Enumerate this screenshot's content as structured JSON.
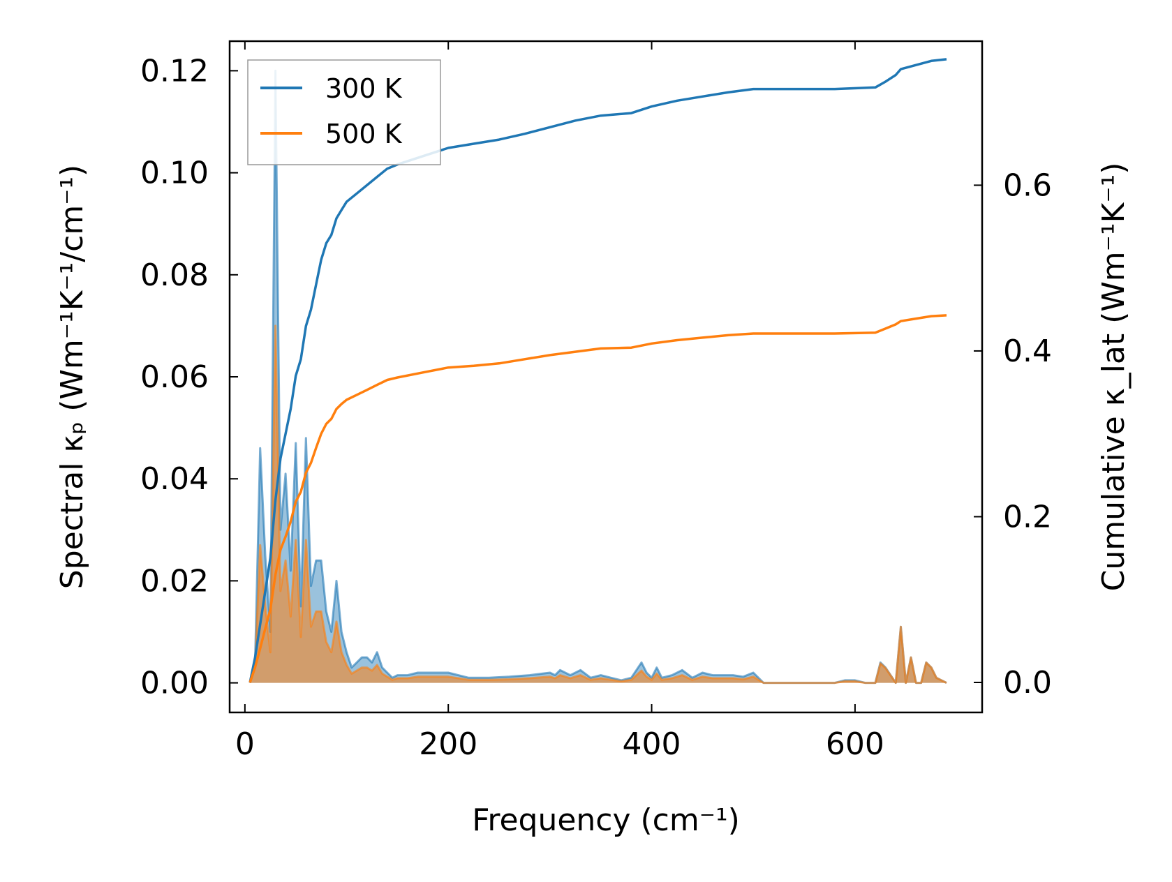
{
  "chart_data": {
    "type": "line",
    "xlabel": "Frequency (cm⁻¹)",
    "ylabel_left": "Spectral κₚ (Wm⁻¹K⁻¹/cm⁻¹)",
    "ylabel_right": "Cumulative κ_lat (Wm⁻¹K⁻¹)",
    "xlim": [
      -15,
      725
    ],
    "ylim_left": [
      -0.0058,
      0.1258
    ],
    "ylim_right": [
      -0.0362,
      0.7738
    ],
    "x_ticks": [
      0,
      200,
      400,
      600
    ],
    "x_tick_labels": [
      "0",
      "200",
      "400",
      "600"
    ],
    "y_left_ticks": [
      0.0,
      0.02,
      0.04,
      0.06,
      0.08,
      0.1,
      0.12
    ],
    "y_left_tick_labels": [
      "0.00",
      "0.02",
      "0.04",
      "0.06",
      "0.08",
      "0.10",
      "0.12"
    ],
    "y_right_ticks": [
      0.0,
      0.2,
      0.4,
      0.6
    ],
    "y_right_tick_labels": [
      "0.0",
      "0.2",
      "0.4",
      "0.6"
    ],
    "legend": {
      "position": "top-left",
      "entries": [
        "300 K",
        "500 K"
      ]
    },
    "colors": {
      "300 K": "#1f77b4",
      "500 K": "#ff7f0e"
    },
    "series": [
      {
        "name": "300 K",
        "kind": "spectral",
        "axis": "left",
        "x": [
          5,
          10,
          15,
          20,
          25,
          30,
          35,
          40,
          45,
          50,
          55,
          60,
          65,
          70,
          75,
          80,
          85,
          90,
          95,
          100,
          105,
          110,
          115,
          120,
          125,
          130,
          135,
          140,
          145,
          150,
          160,
          170,
          180,
          200,
          220,
          240,
          260,
          280,
          300,
          305,
          310,
          320,
          330,
          340,
          350,
          360,
          370,
          380,
          390,
          395,
          400,
          405,
          410,
          420,
          430,
          440,
          450,
          460,
          470,
          480,
          490,
          500,
          510,
          520,
          560,
          580,
          590,
          600,
          610,
          620,
          625,
          630,
          640,
          645,
          650,
          655,
          660,
          665,
          670,
          675,
          680,
          690
        ],
        "y": [
          0.0,
          0.004,
          0.046,
          0.025,
          0.01,
          0.12,
          0.03,
          0.041,
          0.022,
          0.047,
          0.015,
          0.048,
          0.019,
          0.024,
          0.024,
          0.014,
          0.01,
          0.02,
          0.01,
          0.006,
          0.003,
          0.004,
          0.005,
          0.005,
          0.004,
          0.006,
          0.003,
          0.002,
          0.001,
          0.0015,
          0.0015,
          0.002,
          0.002,
          0.002,
          0.001,
          0.001,
          0.0012,
          0.0015,
          0.002,
          0.0015,
          0.0025,
          0.0015,
          0.0025,
          0.001,
          0.0015,
          0.001,
          0.0005,
          0.001,
          0.004,
          0.002,
          0.001,
          0.003,
          0.001,
          0.0015,
          0.0025,
          0.001,
          0.002,
          0.0015,
          0.0015,
          0.0015,
          0.0012,
          0.002,
          0.0,
          0.0,
          0.0,
          0.0,
          0.0005,
          0.0005,
          0.0,
          0.0,
          0.004,
          0.003,
          0.0,
          0.011,
          0.0,
          0.005,
          0.0,
          0.0,
          0.004,
          0.003,
          0.001,
          0.0
        ]
      },
      {
        "name": "500 K",
        "kind": "spectral",
        "axis": "left",
        "x": [
          5,
          10,
          15,
          20,
          25,
          30,
          35,
          40,
          45,
          50,
          55,
          60,
          65,
          70,
          75,
          80,
          85,
          90,
          95,
          100,
          105,
          110,
          115,
          120,
          125,
          130,
          135,
          140,
          145,
          150,
          160,
          170,
          180,
          200,
          220,
          240,
          260,
          280,
          300,
          305,
          310,
          320,
          330,
          340,
          350,
          360,
          370,
          380,
          390,
          395,
          400,
          405,
          410,
          420,
          430,
          440,
          450,
          460,
          470,
          480,
          490,
          500,
          510,
          520,
          560,
          580,
          590,
          600,
          610,
          620,
          625,
          630,
          640,
          645,
          650,
          655,
          660,
          665,
          670,
          675,
          680,
          690
        ],
        "y": [
          0.0,
          0.003,
          0.027,
          0.015,
          0.006,
          0.07,
          0.018,
          0.024,
          0.013,
          0.028,
          0.009,
          0.028,
          0.011,
          0.014,
          0.014,
          0.008,
          0.006,
          0.012,
          0.006,
          0.0035,
          0.0018,
          0.0024,
          0.003,
          0.003,
          0.0024,
          0.0035,
          0.0018,
          0.0012,
          0.0006,
          0.0009,
          0.0009,
          0.0012,
          0.0012,
          0.0012,
          0.0006,
          0.0006,
          0.0007,
          0.0009,
          0.0012,
          0.0009,
          0.0015,
          0.0009,
          0.0015,
          0.0006,
          0.0009,
          0.0006,
          0.0003,
          0.0006,
          0.0024,
          0.0012,
          0.0006,
          0.0018,
          0.0006,
          0.0009,
          0.0015,
          0.0006,
          0.0012,
          0.0009,
          0.0009,
          0.0009,
          0.0007,
          0.0012,
          0.0,
          0.0,
          0.0,
          0.0,
          0.0003,
          0.0003,
          0.0,
          0.0,
          0.0038,
          0.0029,
          0.0,
          0.011,
          0.0,
          0.005,
          0.0,
          0.0,
          0.004,
          0.003,
          0.001,
          0.0
        ]
      },
      {
        "name": "300 K",
        "kind": "cumulative",
        "axis": "right",
        "x": [
          5,
          10,
          15,
          20,
          25,
          30,
          35,
          40,
          45,
          50,
          55,
          60,
          65,
          70,
          75,
          80,
          85,
          90,
          95,
          100,
          110,
          120,
          130,
          140,
          150,
          175,
          200,
          225,
          250,
          275,
          300,
          325,
          350,
          380,
          400,
          425,
          450,
          475,
          500,
          550,
          580,
          620,
          630,
          640,
          645,
          660,
          675,
          690
        ],
        "y": [
          0.0,
          0.03,
          0.07,
          0.11,
          0.15,
          0.22,
          0.27,
          0.3,
          0.33,
          0.37,
          0.39,
          0.43,
          0.45,
          0.48,
          0.51,
          0.53,
          0.54,
          0.56,
          0.57,
          0.58,
          0.59,
          0.6,
          0.61,
          0.62,
          0.625,
          0.635,
          0.645,
          0.65,
          0.655,
          0.662,
          0.67,
          0.678,
          0.684,
          0.687,
          0.695,
          0.702,
          0.707,
          0.712,
          0.716,
          0.716,
          0.716,
          0.718,
          0.725,
          0.733,
          0.74,
          0.745,
          0.75,
          0.752
        ]
      },
      {
        "name": "500 K",
        "kind": "cumulative",
        "axis": "right",
        "x": [
          5,
          10,
          15,
          20,
          25,
          30,
          35,
          40,
          45,
          50,
          55,
          60,
          65,
          70,
          75,
          80,
          85,
          90,
          95,
          100,
          110,
          120,
          130,
          140,
          150,
          175,
          200,
          225,
          250,
          275,
          300,
          325,
          350,
          380,
          400,
          425,
          450,
          475,
          500,
          550,
          580,
          620,
          630,
          640,
          645,
          660,
          675,
          690
        ],
        "y": [
          0.0,
          0.018,
          0.041,
          0.065,
          0.088,
          0.13,
          0.16,
          0.176,
          0.194,
          0.218,
          0.23,
          0.253,
          0.265,
          0.283,
          0.3,
          0.312,
          0.318,
          0.33,
          0.336,
          0.341,
          0.347,
          0.353,
          0.359,
          0.365,
          0.368,
          0.374,
          0.38,
          0.382,
          0.385,
          0.39,
          0.395,
          0.399,
          0.403,
          0.404,
          0.409,
          0.413,
          0.416,
          0.419,
          0.421,
          0.421,
          0.421,
          0.422,
          0.427,
          0.432,
          0.436,
          0.439,
          0.442,
          0.443
        ]
      }
    ]
  }
}
